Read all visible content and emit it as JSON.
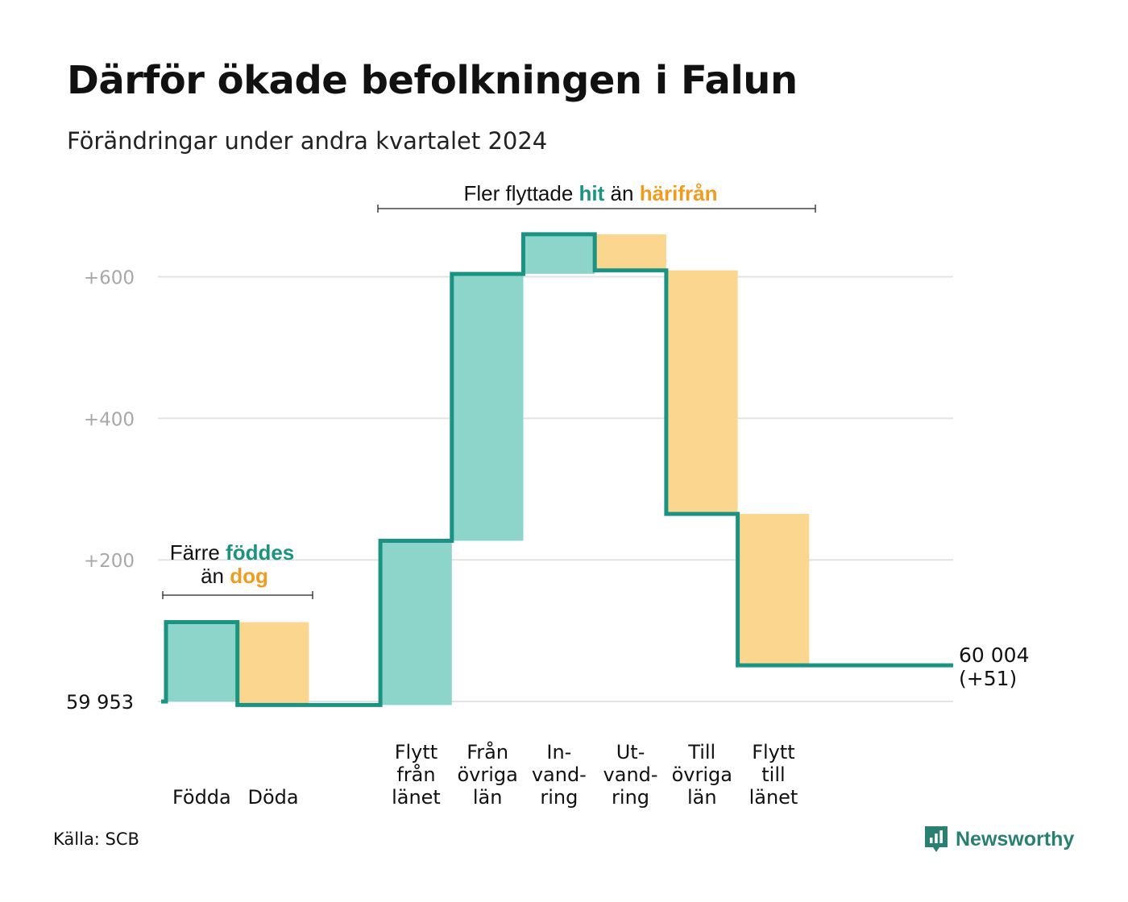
{
  "title": "Därför ökade befolkningen i Falun",
  "subtitle": "Förändringar under andra kvartalet 2024",
  "source": "Källa: SCB",
  "brand": {
    "name": "Newsworthy",
    "icon": "newsworthy-logo-icon",
    "color": "#2a7f73"
  },
  "colors": {
    "line": "#1a9383",
    "inflow": "#8dd4cb",
    "outflow": "#fad68f",
    "accent_in": "#1a9383",
    "accent_out": "#f29b1e",
    "grid": "#e3e3e3",
    "tick": "#a8a8a8"
  },
  "annotations": {
    "births": {
      "line1_prefix": "Färre",
      "line1_em": "föddes",
      "line2_prefix": "än",
      "line2_em": "dog"
    },
    "migration": {
      "prefix": "Fler flyttade",
      "em1": "hit",
      "middle": "än",
      "em2": "härifrån"
    }
  },
  "chart_data": {
    "type": "waterfall",
    "baseline_label": "59  953",
    "end_label_line1": "60 004",
    "end_label_line2": "(+51)",
    "ylim": [
      -5,
      660
    ],
    "yticks": [
      {
        "value": 200,
        "label": "+200"
      },
      {
        "value": 400,
        "label": "+400"
      },
      {
        "value": 600,
        "label": "+600"
      }
    ],
    "grid": true,
    "steps": [
      {
        "label_lines": [
          "Födda"
        ],
        "value": 112,
        "kind": "in"
      },
      {
        "label_lines": [
          "Döda"
        ],
        "value": -117,
        "kind": "out"
      },
      {
        "label_lines": [
          ""
        ],
        "value": 0,
        "kind": "none"
      },
      {
        "label_lines": [
          "Flytt",
          "från",
          "länet"
        ],
        "value": 232,
        "kind": "in"
      },
      {
        "label_lines": [
          "Från",
          "övriga",
          "län"
        ],
        "value": 377,
        "kind": "in"
      },
      {
        "label_lines": [
          "In-",
          "vand-",
          "ring"
        ],
        "value": 56,
        "kind": "in"
      },
      {
        "label_lines": [
          "Ut-",
          "vand-",
          "ring"
        ],
        "value": -51,
        "kind": "out"
      },
      {
        "label_lines": [
          "Till",
          "övriga",
          "län"
        ],
        "value": -344,
        "kind": "out"
      },
      {
        "label_lines": [
          "Flytt",
          "till",
          "länet"
        ],
        "value": -214,
        "kind": "out"
      }
    ]
  }
}
